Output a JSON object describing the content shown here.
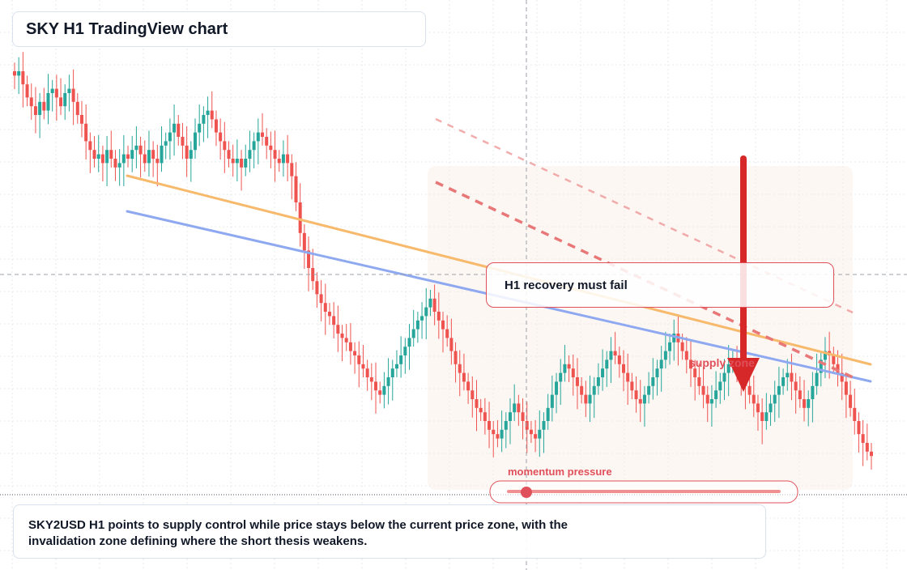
{
  "title": "SKY H1 TradingView chart",
  "callout": "H1 recovery must fail",
  "zone_label": "supply zone",
  "momentum_label": "momentum pressure",
  "summary": "SKY2USD H1 points to supply control while price stays below the current price zone, with the invalidation zone defining where the short thesis weakens.",
  "colors": {
    "up": "#26a69a",
    "down": "#ef5350",
    "trend_orange": "#f7b96b",
    "trend_blue": "#8fa9f0",
    "bearish_dashed": "#e87878",
    "signal_arrow": "#d62828",
    "zone_fill": "#fbeee6"
  },
  "chart_data": {
    "type": "candlestick",
    "timeframe": "H1",
    "symbol": "SKY2USD",
    "grid": true,
    "axes_labels_visible": false,
    "closes": [
      99,
      100,
      97,
      94,
      92,
      90,
      93,
      91,
      95,
      96,
      94,
      92,
      95,
      96,
      93,
      90,
      88,
      84,
      82,
      80,
      81,
      79,
      82,
      80,
      78,
      79,
      81,
      80,
      82,
      83,
      81,
      79,
      82,
      80,
      79,
      83,
      84,
      86,
      88,
      85,
      83,
      80,
      82,
      86,
      88,
      90,
      91,
      89,
      86,
      84,
      82,
      80,
      79,
      80,
      78,
      80,
      82,
      84,
      86,
      85,
      83,
      82,
      80,
      79,
      81,
      79,
      76,
      70,
      63,
      59,
      55,
      52,
      49,
      47,
      45,
      44,
      42,
      40,
      39,
      38,
      36,
      35,
      33,
      32,
      30,
      29,
      27,
      26,
      28,
      30,
      32,
      33,
      35,
      37,
      39,
      41,
      43,
      44,
      46,
      48,
      45,
      43,
      41,
      39,
      36,
      33,
      31,
      29,
      27,
      25,
      23,
      22,
      20,
      18,
      17,
      16,
      18,
      20,
      22,
      24,
      22,
      20,
      18,
      17,
      16,
      18,
      20,
      23,
      26,
      29,
      31,
      33,
      32,
      30,
      28,
      26,
      24,
      26,
      28,
      30,
      32,
      34,
      36,
      35,
      33,
      31,
      29,
      27,
      25,
      24,
      26,
      28,
      30,
      32,
      34,
      36,
      38,
      40,
      38,
      36,
      34,
      32,
      30,
      28,
      26,
      24,
      25,
      27,
      29,
      31,
      33,
      34,
      32,
      30,
      28,
      26,
      24,
      22,
      20,
      22,
      24,
      26,
      28,
      30,
      31,
      29,
      27,
      25,
      23,
      25,
      28,
      31,
      34,
      36,
      35,
      33,
      31,
      29,
      26,
      23,
      20,
      17,
      15,
      13,
      12
    ],
    "current_price_line_level": 0.13,
    "crosshair_level": 0.34
  }
}
